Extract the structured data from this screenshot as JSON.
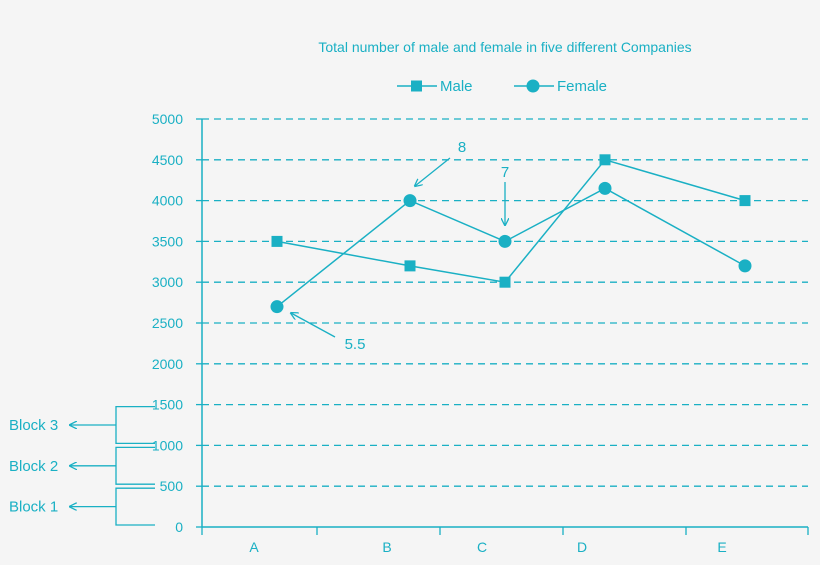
{
  "chart_data": {
    "type": "line",
    "title": "Total number of male and female in five different Companies",
    "categories": [
      "A",
      "B",
      "C",
      "D",
      "E"
    ],
    "ylim": [
      0,
      5000
    ],
    "yticks": [
      0,
      500,
      1000,
      1500,
      2000,
      2500,
      3000,
      3500,
      4000,
      4500,
      5000
    ],
    "grid": "horizontal dashed",
    "legend_position": "top-center",
    "series": [
      {
        "name": "Male",
        "marker": "square",
        "values": [
          3500,
          3200,
          3000,
          4500,
          4000
        ]
      },
      {
        "name": "Female",
        "marker": "circle",
        "values": [
          2700,
          4000,
          3500,
          4150,
          3200
        ]
      }
    ],
    "annotations": [
      {
        "text": "5.5",
        "category": "A",
        "series": "Female"
      },
      {
        "text": "8",
        "category": "B",
        "series": "Female"
      },
      {
        "text": "7",
        "category": "C",
        "series": "Female"
      }
    ],
    "blocks": [
      {
        "label": "Block 3",
        "range": [
          1000,
          1500
        ]
      },
      {
        "label": "Block 2",
        "range": [
          500,
          1000
        ]
      },
      {
        "label": "Block 1",
        "range": [
          0,
          500
        ]
      }
    ]
  },
  "colors": {
    "accent": "#1ab0c4",
    "background": "#f5f5f5"
  }
}
